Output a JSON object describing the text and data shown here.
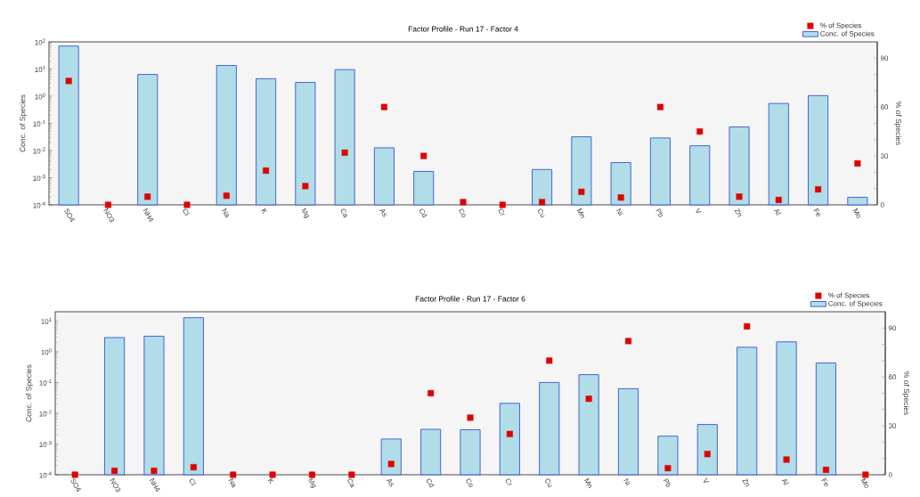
{
  "chart_data": [
    {
      "type": "bar",
      "title": "Factor Profile - Run 17 - Factor 4",
      "ylabel": "Conc. of Species",
      "y2label": "% of Species",
      "log": "y",
      "legend": "top right",
      "marker": "square",
      "categories": [
        "SO4",
        "NO3",
        "NH4",
        "Cl",
        "Na",
        "K",
        "Mg",
        "Ca",
        "As",
        "Cd",
        "Co",
        "Cr",
        "Cu",
        "Mn",
        "Ni",
        "Pb",
        "V",
        "Zn",
        "Al",
        "Fe",
        "Mo"
      ],
      "ylim": [
        0.0001,
        100
      ],
      "yticks": [
        {
          "value": 0.0001,
          "label": "10$^{-4}$"
        },
        {
          "value": 0.001,
          "label": "10$^{-3}$"
        },
        {
          "value": 0.01,
          "label": "10$^{-2}$"
        },
        {
          "value": 0.1,
          "label": "10$^{-1}$"
        },
        {
          "value": 1,
          "label": "10$^{0}$"
        },
        {
          "value": 10,
          "label": "10$^{1}$"
        },
        {
          "value": 100,
          "label": "10$^{2}$"
        }
      ],
      "y2lim": [
        0,
        100
      ],
      "y2ticks": [
        0,
        {
          "value": 10,
          "label": null
        },
        {
          "value": 20,
          "label": null
        },
        30,
        {
          "value": 40,
          "label": null
        },
        {
          "value": 50,
          "label": null
        },
        60,
        {
          "value": 70,
          "label": null
        },
        {
          "value": 80,
          "label": null
        },
        90
      ],
      "series": [
        {
          "name": "% of Species",
          "type": "scatter",
          "axis": "y2",
          "color": "#e00000",
          "values": [
            76,
            0,
            5,
            0,
            5.6,
            21,
            11.5,
            32,
            60,
            30,
            1.7,
            0,
            1.7,
            8,
            4.5,
            60,
            45,
            5,
            3,
            9.5,
            25.4
          ]
        },
        {
          "name": "Conc. of Species",
          "color": "#b0dde8",
          "values": [
            70,
            null,
            6.3,
            null,
            13.5,
            4.4,
            3.2,
            9.5,
            0.0126,
            0.0017,
            null,
            null,
            0.002,
            0.032,
            0.0036,
            0.029,
            0.015,
            0.074,
            0.54,
            1.05,
            0.00019
          ]
        }
      ]
    },
    {
      "type": "bar",
      "title": "Factor Profile - Run 17 - Factor 6",
      "ylabel": "Conc. of Species",
      "y2label": "% of Species",
      "log": "y",
      "legend": "top right",
      "marker": "square",
      "categories": [
        "SO4",
        "NO3",
        "NH4",
        "Cl",
        "Na",
        "K",
        "Mg",
        "Ca",
        "As",
        "Cd",
        "Co",
        "Cr",
        "Cu",
        "Mn",
        "Ni",
        "Pb",
        "V",
        "Zn",
        "Al",
        "Fe",
        "Mo"
      ],
      "ylim": [
        0.0001,
        20
      ],
      "yticks": [
        {
          "value": 0.0001,
          "label": "10$^{-4}$"
        },
        {
          "value": 0.001,
          "label": "10$^{-3}$"
        },
        {
          "value": 0.01,
          "label": "10$^{-2}$"
        },
        {
          "value": 0.1,
          "label": "10$^{-1}$"
        },
        {
          "value": 1,
          "label": "10$^{0}$"
        },
        {
          "value": 10,
          "label": "10$^{1}$"
        }
      ],
      "y2lim": [
        0,
        100
      ],
      "y2ticks": [
        0,
        {
          "value": 10,
          "label": null
        },
        {
          "value": 20,
          "label": null
        },
        30,
        {
          "value": 40,
          "label": null
        },
        {
          "value": 50,
          "label": null
        },
        60,
        {
          "value": 70,
          "label": null
        },
        {
          "value": 80,
          "label": null
        },
        90
      ],
      "series": [
        {
          "name": "% of Species",
          "type": "scatter",
          "axis": "y2",
          "color": "#e00000",
          "values": [
            0,
            2.4,
            2.4,
            4.6,
            0,
            0,
            0,
            0,
            6.6,
            50,
            35,
            25,
            70,
            46.6,
            82,
            4,
            12.7,
            91,
            9.3,
            3,
            0
          ]
        },
        {
          "name": "Conc. of Species",
          "color": "#b0dde8",
          "values": [
            null,
            2.9,
            3.2,
            12.8,
            null,
            null,
            null,
            null,
            0.00145,
            0.003,
            0.0029,
            0.021,
            0.1,
            0.18,
            0.063,
            0.0018,
            0.0043,
            1.4,
            2.1,
            0.43,
            null
          ]
        }
      ]
    }
  ]
}
